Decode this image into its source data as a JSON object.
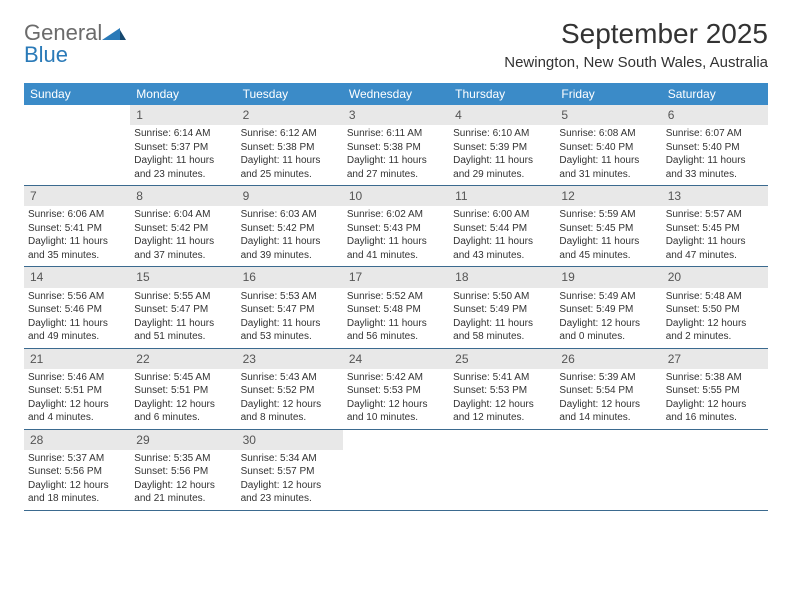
{
  "logo": {
    "text_general": "General",
    "text_blue": "Blue",
    "shape_color": "#2a7ab8"
  },
  "header": {
    "month_title": "September 2025",
    "location": "Newington, New South Wales, Australia"
  },
  "colors": {
    "header_bg": "#3b8bc8",
    "header_text": "#ffffff",
    "daynum_bg": "#e8e8e8",
    "row_border": "#3b6a8f",
    "body_text": "#333333"
  },
  "weekdays": [
    "Sunday",
    "Monday",
    "Tuesday",
    "Wednesday",
    "Thursday",
    "Friday",
    "Saturday"
  ],
  "weeks": [
    [
      null,
      {
        "n": "1",
        "sunrise": "Sunrise: 6:14 AM",
        "sunset": "Sunset: 5:37 PM",
        "daylight": "Daylight: 11 hours and 23 minutes."
      },
      {
        "n": "2",
        "sunrise": "Sunrise: 6:12 AM",
        "sunset": "Sunset: 5:38 PM",
        "daylight": "Daylight: 11 hours and 25 minutes."
      },
      {
        "n": "3",
        "sunrise": "Sunrise: 6:11 AM",
        "sunset": "Sunset: 5:38 PM",
        "daylight": "Daylight: 11 hours and 27 minutes."
      },
      {
        "n": "4",
        "sunrise": "Sunrise: 6:10 AM",
        "sunset": "Sunset: 5:39 PM",
        "daylight": "Daylight: 11 hours and 29 minutes."
      },
      {
        "n": "5",
        "sunrise": "Sunrise: 6:08 AM",
        "sunset": "Sunset: 5:40 PM",
        "daylight": "Daylight: 11 hours and 31 minutes."
      },
      {
        "n": "6",
        "sunrise": "Sunrise: 6:07 AM",
        "sunset": "Sunset: 5:40 PM",
        "daylight": "Daylight: 11 hours and 33 minutes."
      }
    ],
    [
      {
        "n": "7",
        "sunrise": "Sunrise: 6:06 AM",
        "sunset": "Sunset: 5:41 PM",
        "daylight": "Daylight: 11 hours and 35 minutes."
      },
      {
        "n": "8",
        "sunrise": "Sunrise: 6:04 AM",
        "sunset": "Sunset: 5:42 PM",
        "daylight": "Daylight: 11 hours and 37 minutes."
      },
      {
        "n": "9",
        "sunrise": "Sunrise: 6:03 AM",
        "sunset": "Sunset: 5:42 PM",
        "daylight": "Daylight: 11 hours and 39 minutes."
      },
      {
        "n": "10",
        "sunrise": "Sunrise: 6:02 AM",
        "sunset": "Sunset: 5:43 PM",
        "daylight": "Daylight: 11 hours and 41 minutes."
      },
      {
        "n": "11",
        "sunrise": "Sunrise: 6:00 AM",
        "sunset": "Sunset: 5:44 PM",
        "daylight": "Daylight: 11 hours and 43 minutes."
      },
      {
        "n": "12",
        "sunrise": "Sunrise: 5:59 AM",
        "sunset": "Sunset: 5:45 PM",
        "daylight": "Daylight: 11 hours and 45 minutes."
      },
      {
        "n": "13",
        "sunrise": "Sunrise: 5:57 AM",
        "sunset": "Sunset: 5:45 PM",
        "daylight": "Daylight: 11 hours and 47 minutes."
      }
    ],
    [
      {
        "n": "14",
        "sunrise": "Sunrise: 5:56 AM",
        "sunset": "Sunset: 5:46 PM",
        "daylight": "Daylight: 11 hours and 49 minutes."
      },
      {
        "n": "15",
        "sunrise": "Sunrise: 5:55 AM",
        "sunset": "Sunset: 5:47 PM",
        "daylight": "Daylight: 11 hours and 51 minutes."
      },
      {
        "n": "16",
        "sunrise": "Sunrise: 5:53 AM",
        "sunset": "Sunset: 5:47 PM",
        "daylight": "Daylight: 11 hours and 53 minutes."
      },
      {
        "n": "17",
        "sunrise": "Sunrise: 5:52 AM",
        "sunset": "Sunset: 5:48 PM",
        "daylight": "Daylight: 11 hours and 56 minutes."
      },
      {
        "n": "18",
        "sunrise": "Sunrise: 5:50 AM",
        "sunset": "Sunset: 5:49 PM",
        "daylight": "Daylight: 11 hours and 58 minutes."
      },
      {
        "n": "19",
        "sunrise": "Sunrise: 5:49 AM",
        "sunset": "Sunset: 5:49 PM",
        "daylight": "Daylight: 12 hours and 0 minutes."
      },
      {
        "n": "20",
        "sunrise": "Sunrise: 5:48 AM",
        "sunset": "Sunset: 5:50 PM",
        "daylight": "Daylight: 12 hours and 2 minutes."
      }
    ],
    [
      {
        "n": "21",
        "sunrise": "Sunrise: 5:46 AM",
        "sunset": "Sunset: 5:51 PM",
        "daylight": "Daylight: 12 hours and 4 minutes."
      },
      {
        "n": "22",
        "sunrise": "Sunrise: 5:45 AM",
        "sunset": "Sunset: 5:51 PM",
        "daylight": "Daylight: 12 hours and 6 minutes."
      },
      {
        "n": "23",
        "sunrise": "Sunrise: 5:43 AM",
        "sunset": "Sunset: 5:52 PM",
        "daylight": "Daylight: 12 hours and 8 minutes."
      },
      {
        "n": "24",
        "sunrise": "Sunrise: 5:42 AM",
        "sunset": "Sunset: 5:53 PM",
        "daylight": "Daylight: 12 hours and 10 minutes."
      },
      {
        "n": "25",
        "sunrise": "Sunrise: 5:41 AM",
        "sunset": "Sunset: 5:53 PM",
        "daylight": "Daylight: 12 hours and 12 minutes."
      },
      {
        "n": "26",
        "sunrise": "Sunrise: 5:39 AM",
        "sunset": "Sunset: 5:54 PM",
        "daylight": "Daylight: 12 hours and 14 minutes."
      },
      {
        "n": "27",
        "sunrise": "Sunrise: 5:38 AM",
        "sunset": "Sunset: 5:55 PM",
        "daylight": "Daylight: 12 hours and 16 minutes."
      }
    ],
    [
      {
        "n": "28",
        "sunrise": "Sunrise: 5:37 AM",
        "sunset": "Sunset: 5:56 PM",
        "daylight": "Daylight: 12 hours and 18 minutes."
      },
      {
        "n": "29",
        "sunrise": "Sunrise: 5:35 AM",
        "sunset": "Sunset: 5:56 PM",
        "daylight": "Daylight: 12 hours and 21 minutes."
      },
      {
        "n": "30",
        "sunrise": "Sunrise: 5:34 AM",
        "sunset": "Sunset: 5:57 PM",
        "daylight": "Daylight: 12 hours and 23 minutes."
      },
      null,
      null,
      null,
      null
    ]
  ]
}
